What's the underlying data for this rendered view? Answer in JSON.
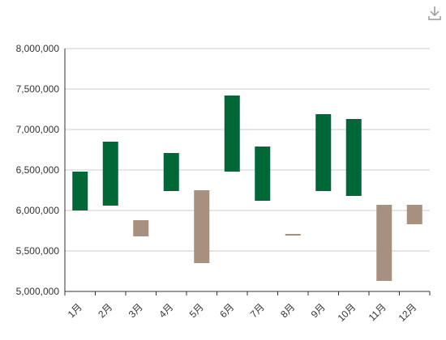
{
  "chart_data": {
    "type": "waterfall",
    "categories": [
      "1月",
      "2月",
      "3月",
      "4月",
      "5月",
      "6月",
      "7月",
      "8月",
      "9月",
      "10月",
      "11月",
      "12月"
    ],
    "bars": [
      {
        "open": 6000000,
        "close": 6480000
      },
      {
        "open": 6060000,
        "close": 6850000
      },
      {
        "open": 5880000,
        "close": 5680000
      },
      {
        "open": 6240000,
        "close": 6710000
      },
      {
        "open": 6250000,
        "close": 5350000
      },
      {
        "open": 6480000,
        "close": 7420000
      },
      {
        "open": 6120000,
        "close": 6790000
      },
      {
        "open": 5710000,
        "close": 5690000
      },
      {
        "open": 6240000,
        "close": 7190000
      },
      {
        "open": 6180000,
        "close": 7130000
      },
      {
        "open": 6070000,
        "close": 5130000
      },
      {
        "open": 6070000,
        "close": 5830000
      }
    ],
    "y_ticks": [
      "5,000,000",
      "5,500,000",
      "6,000,000",
      "6,500,000",
      "7,000,000",
      "7,500,000",
      "8,000,000"
    ],
    "ylim": [
      5000000,
      8000000
    ],
    "grid": true,
    "colors": {
      "increase": "#006837",
      "decrease": "#a89080"
    }
  },
  "toolbar": {
    "download_icon": "download-icon"
  }
}
